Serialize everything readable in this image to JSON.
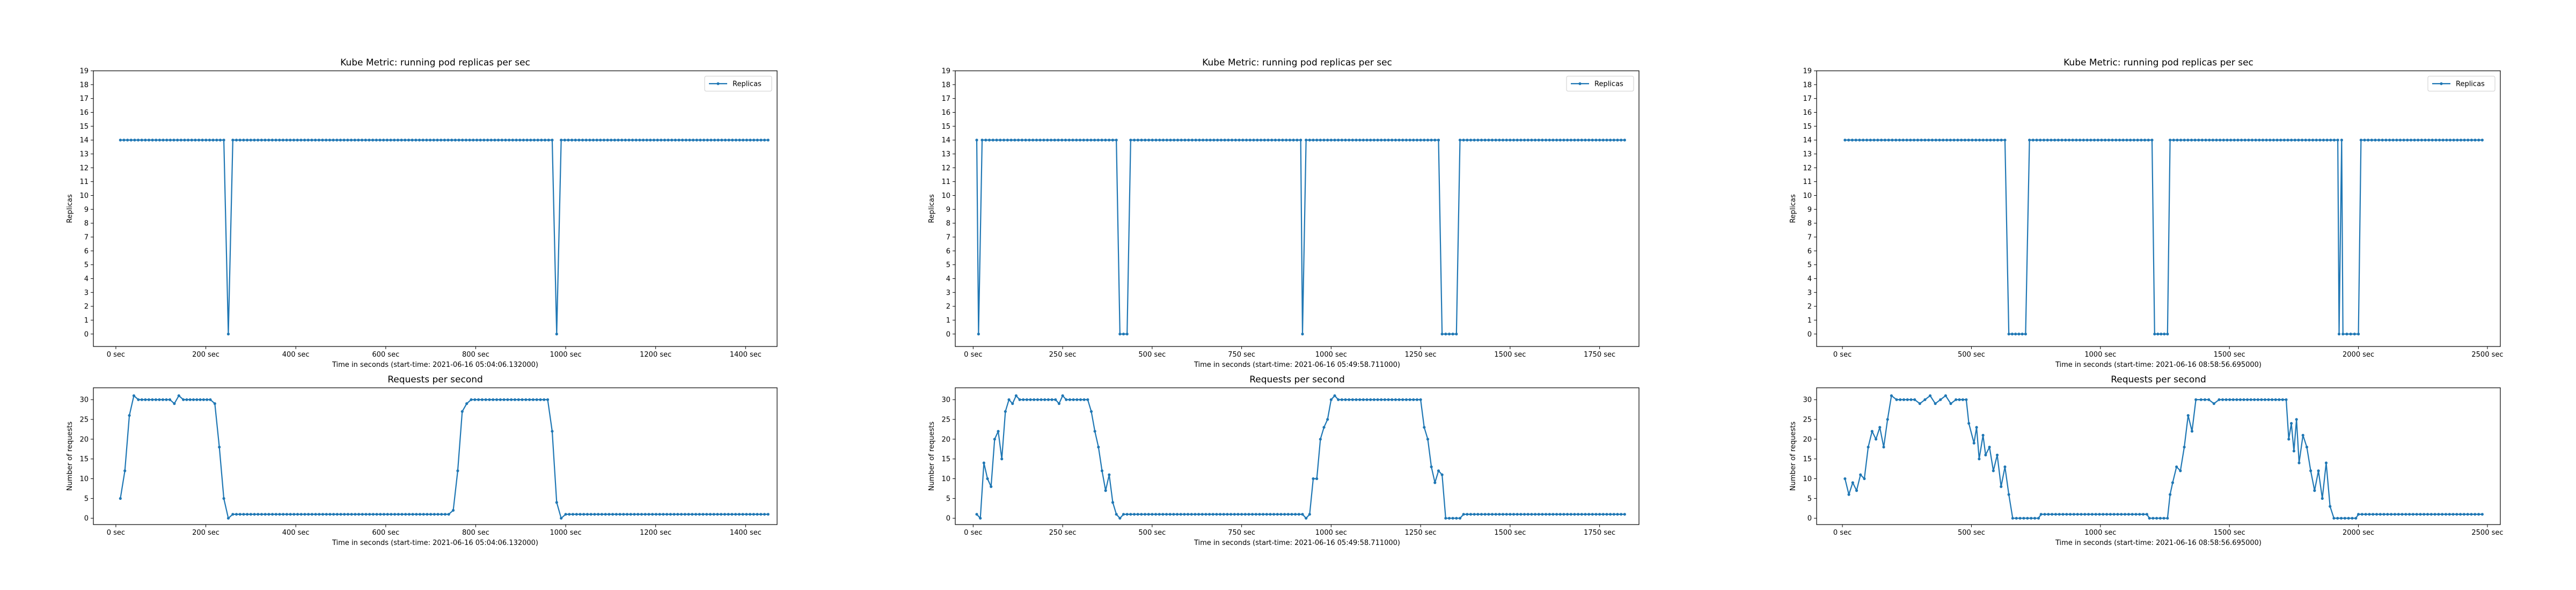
{
  "figure": {
    "colors": {
      "series": "#1f77b4",
      "axes": "#000000",
      "background": "#ffffff",
      "legend_border": "#cccccc"
    },
    "grid": false
  },
  "chart_data": [
    {
      "type": "line",
      "title": "Kube Metric: running pod replicas per sec",
      "xlabel": "Time in seconds (start-time: 2021-06-16 05:04:06.132000)",
      "ylabel": "Replicas",
      "legend": "top-right",
      "xlim": [
        -50,
        1470
      ],
      "ylim": [
        -0.9,
        19
      ],
      "xticks": [
        0,
        200,
        400,
        600,
        800,
        1000,
        1200,
        1400
      ],
      "xtick_labels": [
        "0 sec",
        "200 sec",
        "400 sec",
        "600 sec",
        "800 sec",
        "1000 sec",
        "1200 sec",
        "1400 sec"
      ],
      "yticks": [
        0,
        1,
        2,
        3,
        4,
        5,
        6,
        7,
        8,
        9,
        10,
        11,
        12,
        13,
        14,
        15,
        16,
        17,
        18,
        19
      ],
      "series": [
        {
          "name": "Replicas",
          "points": [
            [
              10,
              14
            ],
            [
              240,
              14
            ],
            [
              250,
              0
            ],
            [
              260,
              14
            ],
            [
              970,
              14
            ],
            [
              980,
              0
            ],
            [
              990,
              14
            ],
            [
              1450,
              14
            ]
          ]
        }
      ]
    },
    {
      "type": "line",
      "title": "Requests per second",
      "xlabel": "Time in seconds (start-time: 2021-06-16 05:04:06.132000)",
      "ylabel": "Number of requests",
      "xlim": [
        -50,
        1470
      ],
      "ylim": [
        -1.6,
        33
      ],
      "xticks": [
        0,
        200,
        400,
        600,
        800,
        1000,
        1200,
        1400
      ],
      "xtick_labels": [
        "0 sec",
        "200 sec",
        "400 sec",
        "600 sec",
        "800 sec",
        "1000 sec",
        "1200 sec",
        "1400 sec"
      ],
      "yticks": [
        0,
        5,
        10,
        15,
        20,
        25,
        30
      ],
      "series": [
        {
          "name": "",
          "points": [
            [
              10,
              5
            ],
            [
              20,
              12
            ],
            [
              30,
              26
            ],
            [
              40,
              31
            ],
            [
              50,
              30
            ],
            [
              120,
              30
            ],
            [
              130,
              29
            ],
            [
              140,
              31
            ],
            [
              150,
              30
            ],
            [
              210,
              30
            ],
            [
              220,
              29
            ],
            [
              230,
              18
            ],
            [
              240,
              5
            ],
            [
              250,
              0
            ],
            [
              260,
              1
            ],
            [
              740,
              1
            ],
            [
              750,
              2
            ],
            [
              760,
              12
            ],
            [
              770,
              27
            ],
            [
              780,
              29
            ],
            [
              790,
              30
            ],
            [
              960,
              30
            ],
            [
              970,
              22
            ],
            [
              980,
              4
            ],
            [
              990,
              0
            ],
            [
              1000,
              1
            ],
            [
              1450,
              1
            ]
          ]
        }
      ]
    },
    {
      "type": "line",
      "title": "Kube Metric: running pod replicas per sec",
      "xlabel": "Time in seconds (start-time: 2021-06-16 05:49:58.711000)",
      "ylabel": "Replicas",
      "legend": "top-right",
      "xlim": [
        -50,
        1860
      ],
      "ylim": [
        -0.9,
        19
      ],
      "xticks": [
        0,
        250,
        500,
        750,
        1000,
        1250,
        1500,
        1750
      ],
      "xtick_labels": [
        "0 sec",
        "250 sec",
        "500 sec",
        "750 sec",
        "1000 sec",
        "1250 sec",
        "1500 sec",
        "1750 sec"
      ],
      "yticks": [
        0,
        1,
        2,
        3,
        4,
        5,
        6,
        7,
        8,
        9,
        10,
        11,
        12,
        13,
        14,
        15,
        16,
        17,
        18,
        19
      ],
      "series": [
        {
          "name": "Replicas",
          "points": [
            [
              10,
              14
            ],
            [
              15,
              0
            ],
            [
              25,
              14
            ],
            [
              400,
              14
            ],
            [
              410,
              0
            ],
            [
              430,
              0
            ],
            [
              440,
              14
            ],
            [
              915,
              14
            ],
            [
              920,
              0
            ],
            [
              930,
              14
            ],
            [
              1300,
              14
            ],
            [
              1310,
              0
            ],
            [
              1350,
              0
            ],
            [
              1360,
              14
            ],
            [
              1820,
              14
            ]
          ]
        }
      ]
    },
    {
      "type": "line",
      "title": "Requests per second",
      "xlabel": "Time in seconds (start-time: 2021-06-16 05:49:58.711000)",
      "ylabel": "Number of requests",
      "xlim": [
        -50,
        1860
      ],
      "ylim": [
        -1.6,
        33
      ],
      "xticks": [
        0,
        250,
        500,
        750,
        1000,
        1250,
        1500,
        1750
      ],
      "xtick_labels": [
        "0 sec",
        "250 sec",
        "500 sec",
        "750 sec",
        "1000 sec",
        "1250 sec",
        "1500 sec",
        "1750 sec"
      ],
      "yticks": [
        0,
        5,
        10,
        15,
        20,
        25,
        30
      ],
      "series": [
        {
          "name": "",
          "points": [
            [
              10,
              1
            ],
            [
              20,
              0
            ],
            [
              30,
              14
            ],
            [
              40,
              10
            ],
            [
              50,
              8
            ],
            [
              60,
              20
            ],
            [
              70,
              22
            ],
            [
              80,
              15
            ],
            [
              90,
              27
            ],
            [
              100,
              30
            ],
            [
              110,
              29
            ],
            [
              120,
              31
            ],
            [
              130,
              30
            ],
            [
              230,
              30
            ],
            [
              240,
              29
            ],
            [
              250,
              31
            ],
            [
              260,
              30
            ],
            [
              320,
              30
            ],
            [
              330,
              27
            ],
            [
              340,
              22
            ],
            [
              350,
              18
            ],
            [
              360,
              12
            ],
            [
              370,
              7
            ],
            [
              380,
              11
            ],
            [
              390,
              4
            ],
            [
              400,
              1
            ],
            [
              410,
              0
            ],
            [
              420,
              1
            ],
            [
              920,
              1
            ],
            [
              930,
              0
            ],
            [
              940,
              1
            ],
            [
              950,
              10
            ],
            [
              960,
              10
            ],
            [
              970,
              20
            ],
            [
              980,
              23
            ],
            [
              990,
              25
            ],
            [
              1000,
              30
            ],
            [
              1010,
              31
            ],
            [
              1020,
              30
            ],
            [
              1250,
              30
            ],
            [
              1260,
              23
            ],
            [
              1270,
              20
            ],
            [
              1280,
              13
            ],
            [
              1290,
              9
            ],
            [
              1300,
              12
            ],
            [
              1310,
              11
            ],
            [
              1320,
              0
            ],
            [
              1360,
              0
            ],
            [
              1370,
              1
            ],
            [
              1820,
              1
            ]
          ]
        }
      ]
    },
    {
      "type": "line",
      "title": "Kube Metric: running pod replicas per sec",
      "xlabel": "Time in seconds (start-time: 2021-06-16 08:58:56.695000)",
      "ylabel": "Replicas",
      "legend": "top-right",
      "xlim": [
        -100,
        2550
      ],
      "ylim": [
        -0.9,
        19
      ],
      "xticks": [
        0,
        500,
        1000,
        1500,
        2000,
        2500
      ],
      "xtick_labels": [
        "0 sec",
        "500 sec",
        "1000 sec",
        "1500 sec",
        "2000 sec",
        "2500 sec"
      ],
      "yticks": [
        0,
        1,
        2,
        3,
        4,
        5,
        6,
        7,
        8,
        9,
        10,
        11,
        12,
        13,
        14,
        15,
        16,
        17,
        18,
        19
      ],
      "series": [
        {
          "name": "Replicas",
          "points": [
            [
              10,
              14
            ],
            [
              630,
              14
            ],
            [
              645,
              0
            ],
            [
              710,
              0
            ],
            [
              725,
              14
            ],
            [
              1200,
              14
            ],
            [
              1210,
              0
            ],
            [
              1260,
              0
            ],
            [
              1270,
              14
            ],
            [
              1920,
              14
            ],
            [
              1925,
              0
            ],
            [
              1935,
              14
            ],
            [
              1940,
              0
            ],
            [
              2000,
              0
            ],
            [
              2010,
              14
            ],
            [
              2480,
              14
            ]
          ]
        }
      ]
    },
    {
      "type": "line",
      "title": "Requests per second",
      "xlabel": "Time in seconds (start-time: 2021-06-16 08:58:56.695000)",
      "ylabel": "Number of requests",
      "xlim": [
        -100,
        2550
      ],
      "ylim": [
        -1.6,
        33
      ],
      "xticks": [
        0,
        500,
        1000,
        1500,
        2000,
        2500
      ],
      "xtick_labels": [
        "0 sec",
        "500 sec",
        "1000 sec",
        "1500 sec",
        "2000 sec",
        "2500 sec"
      ],
      "yticks": [
        0,
        5,
        10,
        15,
        20,
        25,
        30
      ],
      "series": [
        {
          "name": "",
          "points": [
            [
              10,
              10
            ],
            [
              25,
              6
            ],
            [
              40,
              9
            ],
            [
              55,
              7
            ],
            [
              70,
              11
            ],
            [
              85,
              10
            ],
            [
              100,
              18
            ],
            [
              115,
              22
            ],
            [
              130,
              20
            ],
            [
              145,
              23
            ],
            [
              160,
              18
            ],
            [
              175,
              25
            ],
            [
              190,
              31
            ],
            [
              210,
              30
            ],
            [
              280,
              30
            ],
            [
              300,
              29
            ],
            [
              320,
              30
            ],
            [
              340,
              31
            ],
            [
              360,
              29
            ],
            [
              380,
              30
            ],
            [
              400,
              31
            ],
            [
              420,
              29
            ],
            [
              440,
              30
            ],
            [
              480,
              30
            ],
            [
              490,
              24
            ],
            [
              510,
              19
            ],
            [
              520,
              23
            ],
            [
              530,
              15
            ],
            [
              545,
              21
            ],
            [
              555,
              16
            ],
            [
              570,
              18
            ],
            [
              585,
              12
            ],
            [
              600,
              16
            ],
            [
              615,
              8
            ],
            [
              630,
              13
            ],
            [
              645,
              6
            ],
            [
              660,
              0
            ],
            [
              760,
              0
            ],
            [
              770,
              1
            ],
            [
              1180,
              1
            ],
            [
              1190,
              0
            ],
            [
              1260,
              0
            ],
            [
              1270,
              6
            ],
            [
              1280,
              9
            ],
            [
              1295,
              13
            ],
            [
              1310,
              12
            ],
            [
              1325,
              18
            ],
            [
              1340,
              26
            ],
            [
              1355,
              22
            ],
            [
              1370,
              30
            ],
            [
              1390,
              30
            ],
            [
              1420,
              30
            ],
            [
              1440,
              29
            ],
            [
              1460,
              30
            ],
            [
              1720,
              30
            ],
            [
              1730,
              20
            ],
            [
              1740,
              24
            ],
            [
              1750,
              17
            ],
            [
              1760,
              25
            ],
            [
              1770,
              14
            ],
            [
              1785,
              21
            ],
            [
              1800,
              18
            ],
            [
              1815,
              12
            ],
            [
              1830,
              7
            ],
            [
              1845,
              12
            ],
            [
              1860,
              5
            ],
            [
              1875,
              14
            ],
            [
              1890,
              3
            ],
            [
              1905,
              0
            ],
            [
              1990,
              0
            ],
            [
              2000,
              1
            ],
            [
              2480,
              1
            ]
          ]
        }
      ]
    }
  ]
}
